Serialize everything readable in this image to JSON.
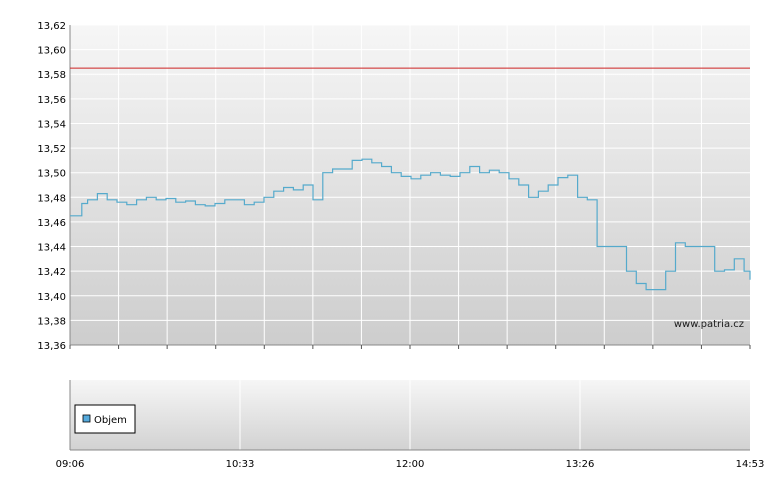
{
  "chart_data": [
    {
      "type": "line",
      "title": "",
      "xlabel": "",
      "ylabel": "",
      "ylim": [
        13.36,
        13.62
      ],
      "xlim": [
        "09:06",
        "14:53"
      ],
      "grid": true,
      "y_ticks": [
        "13,36",
        "13,38",
        "13,40",
        "13,42",
        "13,44",
        "13,46",
        "13,48",
        "13,50",
        "13,52",
        "13,54",
        "13,56",
        "13,58",
        "13,60",
        "13,62"
      ],
      "x_ticks": [
        "09:06",
        "10:33",
        "12:00",
        "13:26",
        "14:53"
      ],
      "reference_line": {
        "value": 13.585,
        "color": "#cc2222"
      },
      "series": [
        {
          "color": "#55aaccff",
          "x": [
            "09:06",
            "09:10",
            "09:12",
            "09:15",
            "09:20",
            "09:25",
            "09:30",
            "09:35",
            "09:40",
            "09:45",
            "09:50",
            "09:55",
            "10:00",
            "10:05",
            "10:10",
            "10:15",
            "10:20",
            "10:25",
            "10:30",
            "10:35",
            "10:40",
            "10:45",
            "10:50",
            "10:55",
            "11:00",
            "11:05",
            "11:10",
            "11:15",
            "11:20",
            "11:25",
            "11:30",
            "11:35",
            "11:40",
            "11:45",
            "11:50",
            "11:55",
            "12:00",
            "12:05",
            "12:10",
            "12:15",
            "12:20",
            "12:25",
            "12:30",
            "12:35",
            "12:40",
            "12:45",
            "12:50",
            "12:55",
            "13:00",
            "13:05",
            "13:10",
            "13:15",
            "13:20",
            "13:25",
            "13:30",
            "13:35",
            "13:40",
            "13:45",
            "13:50",
            "13:55",
            "14:00",
            "14:05",
            "14:10",
            "14:15",
            "14:20",
            "14:25",
            "14:30",
            "14:35",
            "14:40",
            "14:45",
            "14:50",
            "14:53"
          ],
          "values": [
            13.465,
            13.465,
            13.475,
            13.478,
            13.483,
            13.478,
            13.476,
            13.474,
            13.478,
            13.48,
            13.478,
            13.479,
            13.476,
            13.477,
            13.474,
            13.473,
            13.475,
            13.478,
            13.478,
            13.474,
            13.476,
            13.48,
            13.485,
            13.488,
            13.486,
            13.49,
            13.478,
            13.5,
            13.503,
            13.503,
            13.51,
            13.511,
            13.508,
            13.505,
            13.5,
            13.497,
            13.495,
            13.498,
            13.5,
            13.498,
            13.497,
            13.5,
            13.505,
            13.5,
            13.502,
            13.5,
            13.495,
            13.49,
            13.48,
            13.485,
            13.49,
            13.496,
            13.498,
            13.48,
            13.478,
            13.44,
            13.44,
            13.44,
            13.42,
            13.41,
            13.405,
            13.405,
            13.42,
            13.443,
            13.44,
            13.44,
            13.44,
            13.42,
            13.421,
            13.43,
            13.42,
            13.413
          ]
        }
      ]
    },
    {
      "type": "bar",
      "title": "",
      "legend": {
        "entries": [
          "Objem"
        ],
        "position": "bottom-left"
      },
      "series": [
        {
          "name": "Objem",
          "color": "#55aadd",
          "values": []
        }
      ],
      "x_ticks": [
        "09:06",
        "10:33",
        "12:00",
        "13:26",
        "14:53"
      ]
    }
  ],
  "watermark": "www.patria.cz",
  "legend_label": "Objem"
}
